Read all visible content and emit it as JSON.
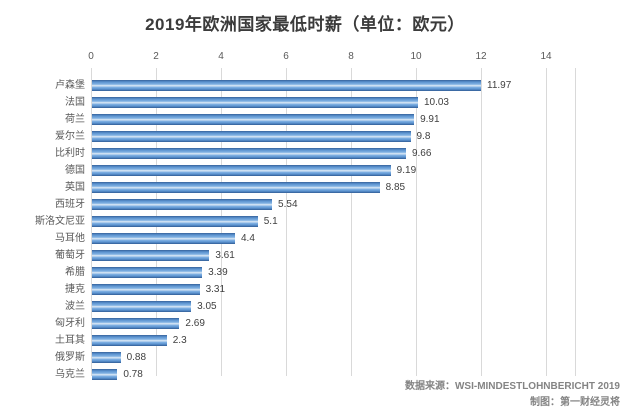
{
  "title": "2019年欧洲国家最低时薪（单位：欧元）",
  "chart_data": {
    "type": "bar",
    "orientation": "horizontal",
    "title": "2019年欧洲国家最低时薪（单位：欧元）",
    "xlabel": "",
    "ylabel": "",
    "xlim": [
      0,
      14
    ],
    "x_ticks": [
      0,
      2,
      4,
      6,
      8,
      10,
      12,
      14
    ],
    "grid": true,
    "axis_position": "top",
    "categories": [
      "卢森堡",
      "法国",
      "荷兰",
      "爱尔兰",
      "比利时",
      "德国",
      "英国",
      "西班牙",
      "斯洛文尼亚",
      "马耳他",
      "葡萄牙",
      "希腊",
      "捷克",
      "波兰",
      "匈牙利",
      "土耳其",
      "俄罗斯",
      "乌克兰"
    ],
    "values": [
      11.97,
      10.03,
      9.91,
      9.8,
      9.66,
      9.19,
      8.85,
      5.54,
      5.1,
      4.4,
      3.61,
      3.39,
      3.31,
      3.05,
      2.69,
      2.3,
      0.88,
      0.78
    ],
    "value_labels": [
      "11.97",
      "10.03",
      "9.91",
      "9.8",
      "9.66",
      "9.19",
      "8.85",
      "5.54",
      "5.1",
      "4.4",
      "3.61",
      "3.39",
      "3.31",
      "3.05",
      "2.69",
      "2.3",
      "0.88",
      "0.78"
    ]
  },
  "footer": {
    "source": "数据来源：WSI-MINDESTLOHNBERICHT 2019",
    "credit": "制图：第一财经灵将"
  },
  "colors": {
    "title_text": "#3b3b3b",
    "tick_text": "#595959",
    "category_text": "#595959",
    "value_text": "#3f3f3f",
    "footer_text": "#848484",
    "gridline": "#d9d9d9",
    "bar_edge_dark": "#35619b",
    "bar_main": "#5c93d0",
    "bar_light": "#7fb0e2",
    "bar_highlight": "#dcE9f6",
    "bar_bottom_dark": "#305c95"
  }
}
